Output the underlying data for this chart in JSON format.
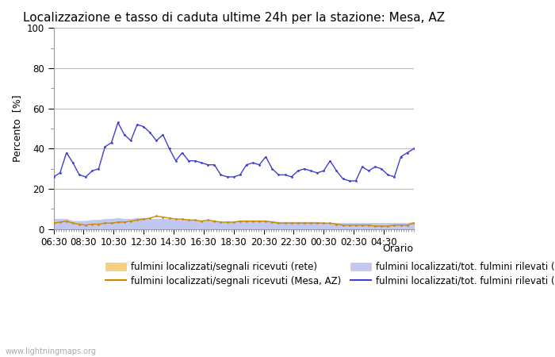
{
  "title": "Localizzazione e tasso di caduta ultime 24h per la stazione: Mesa, AZ",
  "ylabel": "Percento  [■%]",
  "xlim": [
    0,
    24
  ],
  "ylim": [
    0,
    100
  ],
  "yticks": [
    0,
    20,
    40,
    60,
    80,
    100
  ],
  "xtick_labels": [
    "06:30",
    "08:30",
    "10:30",
    "12:30",
    "14:30",
    "16:30",
    "18:30",
    "20:30",
    "22:30",
    "00:30",
    "02:30",
    "04:30"
  ],
  "background_color": "#ffffff",
  "watermark": "www.lightningmaps.org",
  "blue_line": [
    26,
    28,
    38,
    33,
    27,
    26,
    29,
    30,
    41,
    43,
    53,
    47,
    44,
    52,
    51,
    48,
    44,
    47,
    40,
    34,
    38,
    34,
    34,
    33,
    32,
    32,
    27,
    26,
    26,
    27,
    32,
    33,
    32,
    36,
    30,
    27,
    27,
    26,
    29,
    30,
    29,
    28,
    29,
    34,
    29,
    25,
    24,
    24,
    31,
    29,
    31,
    30,
    27,
    26,
    36,
    38,
    40
  ],
  "orange_line": [
    3,
    3.5,
    4,
    3,
    2.5,
    2,
    2.5,
    2.5,
    3,
    3,
    3.5,
    3.5,
    4,
    4.5,
    5,
    5.5,
    6.5,
    6,
    5.5,
    5,
    5,
    4.5,
    4.5,
    4,
    4.5,
    4,
    3.5,
    3.5,
    3.5,
    4,
    4,
    4,
    4,
    4,
    3.5,
    3,
    3,
    3,
    3,
    3,
    3,
    3,
    3,
    3,
    2.5,
    2,
    2,
    2,
    2,
    2,
    1.5,
    1.5,
    1.5,
    2,
    2,
    2,
    3
  ],
  "light_yellow_fill": [
    3,
    3.2,
    3.5,
    3,
    2.5,
    2,
    2.5,
    2.5,
    3,
    3,
    3.5,
    3.2,
    3.5,
    3.8,
    4,
    4,
    4.5,
    4.5,
    4.5,
    4,
    4,
    4,
    4,
    3.5,
    3.5,
    3.5,
    3,
    3,
    3,
    3.5,
    3.5,
    3,
    3,
    3,
    3,
    3,
    3,
    2.5,
    3,
    3,
    3,
    3,
    2.5,
    2.5,
    2,
    2,
    2,
    2,
    2,
    2,
    1.5,
    1.5,
    1.5,
    1.5,
    2,
    2,
    2
  ],
  "light_blue_fill": [
    5,
    5,
    5,
    4,
    4,
    4,
    4.5,
    4.5,
    5,
    5,
    5.5,
    5,
    5,
    5.5,
    5.5,
    5,
    5,
    5,
    5,
    4.5,
    4.5,
    4.5,
    4.5,
    4,
    4,
    4,
    3.5,
    3.5,
    3.5,
    4,
    4,
    4,
    4,
    4,
    4,
    3.5,
    3.5,
    3.5,
    3.5,
    3.5,
    3.5,
    3.5,
    3,
    3,
    3,
    3,
    3,
    3,
    3,
    3,
    3,
    3,
    3,
    3,
    3,
    3,
    3.5
  ],
  "blue_color": "#4040cc",
  "orange_color": "#cc8800",
  "fill_yellow_color": "#f5d080",
  "fill_blue_color": "#c0c8f0",
  "grid_color": "#bbbbbb",
  "title_fontsize": 11,
  "axis_fontsize": 9,
  "tick_fontsize": 8.5,
  "legend_fontsize": 8.5,
  "legend_row1": [
    "fulmini localizzati/segnali ricevuti (rete)",
    "fulmini localizzati/segnali ricevuti (Mesa, AZ)"
  ],
  "legend_row2": [
    "fulmini localizzati/tot. fulmini rilevati (rete)",
    "fulmini localizzati/tot. fulmini rilevati (Mesa, AZ)"
  ]
}
